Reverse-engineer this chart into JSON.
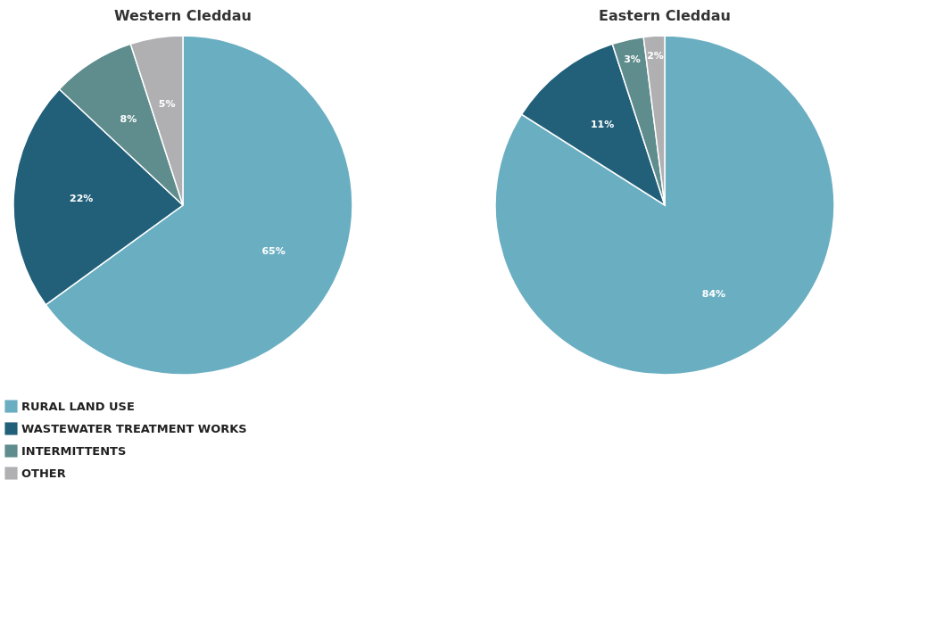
{
  "chart_data": [
    {
      "type": "pie",
      "title": "Western Cleddau",
      "categories": [
        "RURAL LAND USE",
        "WASTEWATER TREATMENT WORKS",
        "INTERMITTENTS",
        "OTHER"
      ],
      "values": [
        65,
        22,
        8,
        5
      ],
      "value_labels": [
        "65%",
        "22%",
        "8%",
        "5%"
      ],
      "colors": [
        "#6aaec2",
        "#22607a",
        "#5f8c8c",
        "#b0b0b3"
      ],
      "legend": "bottom left"
    },
    {
      "type": "pie",
      "title": "Eastern Cleddau",
      "categories": [
        null,
        null,
        null,
        null
      ],
      "values": [
        84,
        11,
        3,
        2
      ],
      "value_labels": [
        "84%",
        "11%",
        "3%",
        "2%"
      ],
      "colors": [
        "#6aaec2",
        "#22607a",
        "#5f8c8c",
        "#b0b0b3"
      ]
    }
  ]
}
